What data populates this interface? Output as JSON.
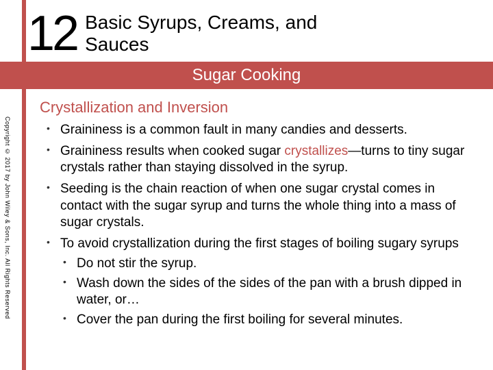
{
  "colors": {
    "accent": "#c0504d",
    "background": "#ffffff",
    "text": "#000000"
  },
  "header": {
    "chapter_number": "12",
    "chapter_title_line1": "Basic Syrups, Creams, and",
    "chapter_title_line2": "Sauces"
  },
  "section_bar": "Sugar Cooking",
  "sub_heading": "Crystallization and Inversion",
  "bullets": [
    {
      "text": "Graininess is a common fault in many candies and desserts."
    },
    {
      "prefix": "Graininess results when cooked sugar ",
      "link": "crystallizes",
      "suffix": "—turns to tiny sugar crystals rather than staying dissolved in the syrup."
    },
    {
      "text": "Seeding is the chain reaction of when one sugar crystal comes in contact with the sugar syrup and turns the whole thing into a mass of sugar crystals."
    },
    {
      "text": "To avoid crystallization during the first stages of boiling sugary syrups",
      "sub": [
        "Do not stir the syrup.",
        "Wash down the sides of the sides of the pan with a brush dipped in water, or…",
        "Cover the pan during the first boiling for several minutes."
      ]
    }
  ],
  "copyright": "Copyright © 2017 by John Wiley & Sons, Inc. All Rights Reserved"
}
